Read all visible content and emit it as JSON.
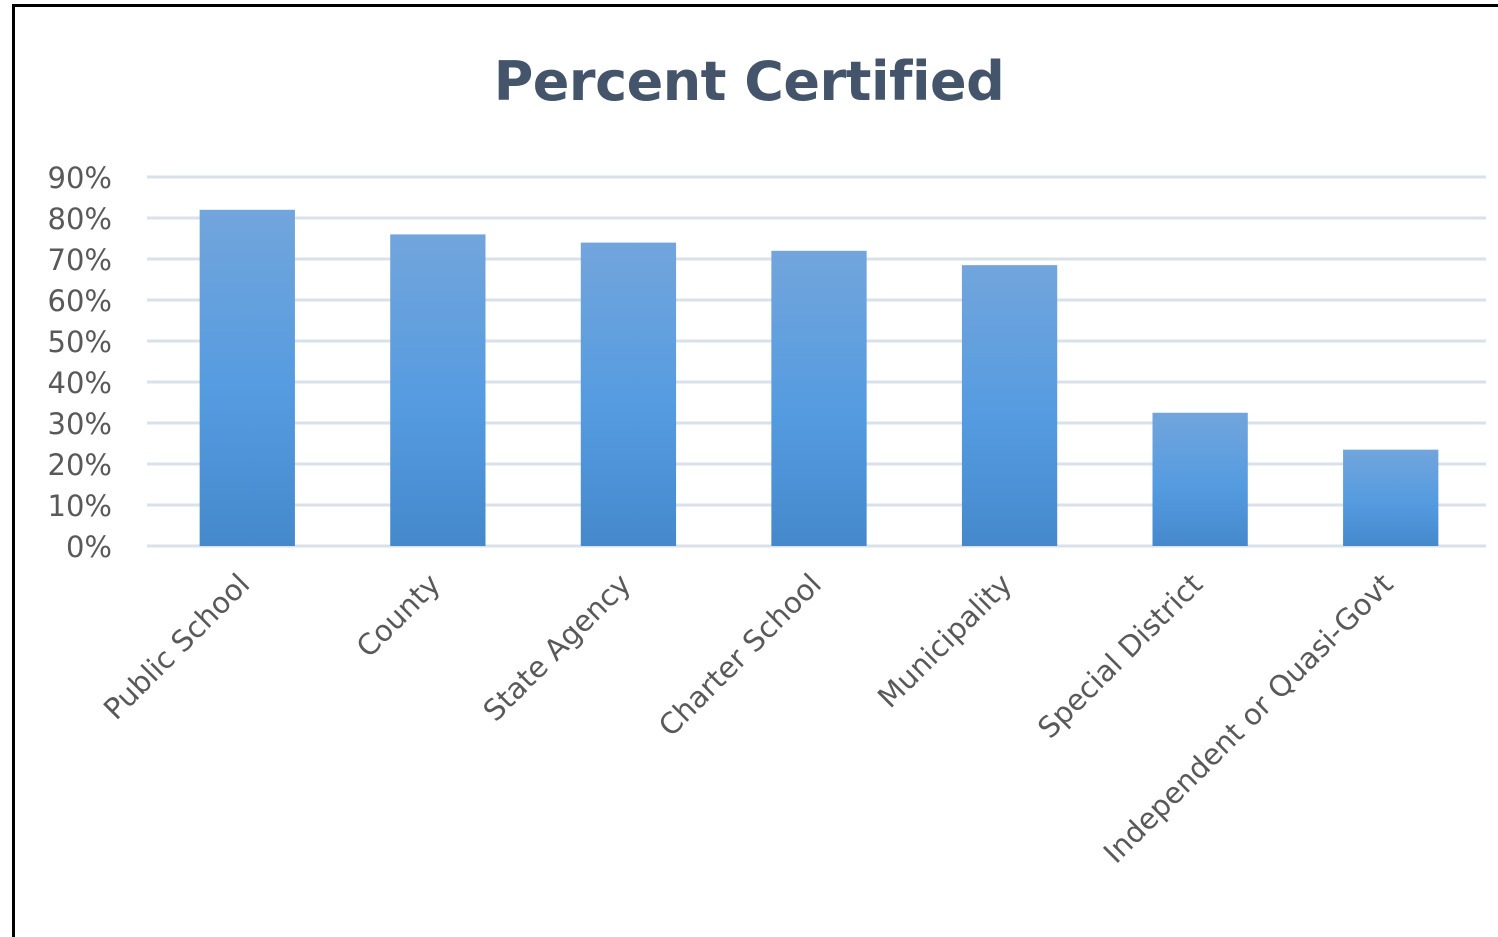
{
  "chart_data": {
    "type": "bar",
    "title": "Percent Certified",
    "categories": [
      "Public School",
      "County",
      "State Agency",
      "Charter School",
      "Municipality",
      "Special District",
      "Independent or Quasi-Govt"
    ],
    "values": [
      82,
      76,
      74,
      72,
      68.5,
      32.5,
      23.5
    ],
    "unit": "%",
    "ylim": [
      0,
      90
    ],
    "yticks": [
      "0%",
      "10%",
      "20%",
      "30%",
      "40%",
      "50%",
      "60%",
      "70%",
      "80%",
      "90%"
    ],
    "xlabel": "",
    "ylabel": "",
    "grid": true,
    "legend": "none",
    "colors": {
      "bar_top": "#72a5dc",
      "bar_mid": "#559be0",
      "bar_bottom": "#4589cc",
      "grid": "#d9e1ea",
      "title": "#44546a",
      "text": "#595959"
    }
  }
}
